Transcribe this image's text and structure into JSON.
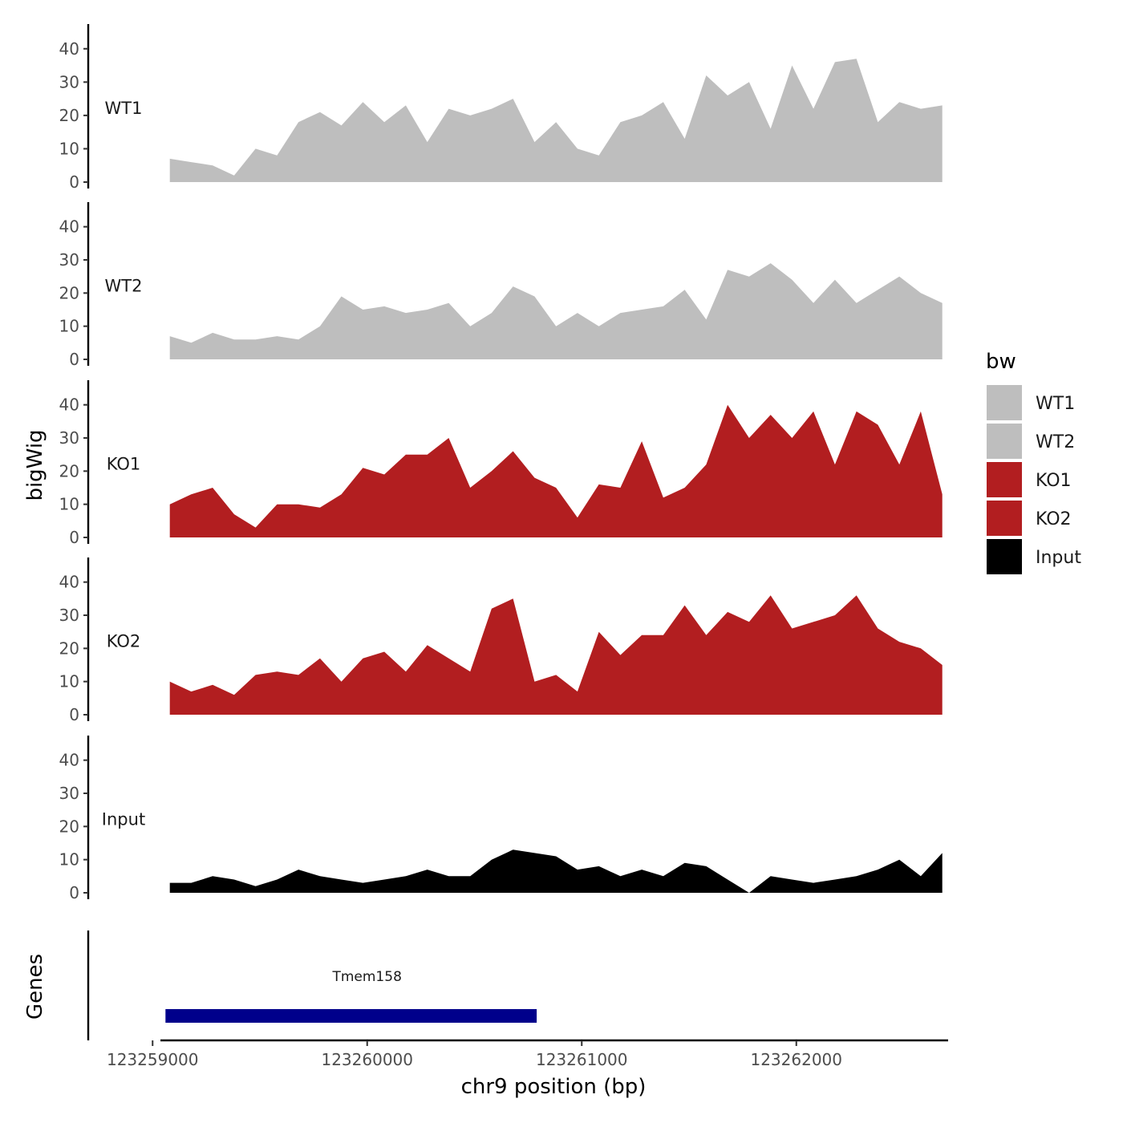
{
  "chart_data": {
    "type": "area",
    "chromosome": "chr9",
    "xlabel": "chr9 position (bp)",
    "ylabel": "bigWig",
    "gene_panel_label": "Genes",
    "xlim": [
      123258700,
      123262700
    ],
    "x_ticks": [
      123259000,
      123260000,
      123261000,
      123262000
    ],
    "x_tick_labels": [
      "123259000",
      "123260000",
      "123261000",
      "123262000"
    ],
    "ylim": [
      0,
      45
    ],
    "y_ticks": [
      0,
      10,
      20,
      30,
      40
    ],
    "y_tick_labels": [
      "0",
      "10",
      "20",
      "30",
      "40"
    ],
    "legend": {
      "title": "bw",
      "position": "right",
      "entries": [
        {
          "label": "WT1",
          "color": "#BEBEBE"
        },
        {
          "label": "WT2",
          "color": "#BEBEBE"
        },
        {
          "label": "KO1",
          "color": "#B21E20"
        },
        {
          "label": "KO2",
          "color": "#B21E20"
        },
        {
          "label": "Input",
          "color": "#000000"
        }
      ]
    },
    "x_positions": [
      123259080,
      123259180,
      123259280,
      123259380,
      123259480,
      123259580,
      123259680,
      123259780,
      123259880,
      123259980,
      123260080,
      123260180,
      123260280,
      123260380,
      123260480,
      123260580,
      123260680,
      123260780,
      123260880,
      123260980,
      123261080,
      123261180,
      123261280,
      123261380,
      123261480,
      123261580,
      123261680,
      123261780,
      123261880,
      123261980,
      123262080,
      123262180,
      123262280,
      123262380,
      123262480,
      123262580,
      123262680
    ],
    "series": [
      {
        "name": "WT1",
        "color": "#BEBEBE",
        "values": [
          7,
          6,
          5,
          2,
          10,
          8,
          18,
          21,
          17,
          24,
          18,
          23,
          12,
          22,
          20,
          22,
          25,
          12,
          18,
          10,
          8,
          18,
          20,
          24,
          13,
          32,
          26,
          30,
          16,
          35,
          22,
          36,
          37,
          18,
          24,
          22,
          23
        ]
      },
      {
        "name": "WT2",
        "color": "#BEBEBE",
        "values": [
          7,
          5,
          8,
          6,
          6,
          7,
          6,
          10,
          19,
          15,
          16,
          14,
          15,
          17,
          10,
          14,
          22,
          19,
          10,
          14,
          10,
          14,
          15,
          16,
          21,
          12,
          27,
          25,
          29,
          24,
          17,
          24,
          17,
          21,
          25,
          20,
          17
        ]
      },
      {
        "name": "KO1",
        "color": "#B21E20",
        "values": [
          10,
          13,
          15,
          7,
          3,
          10,
          10,
          9,
          13,
          21,
          19,
          25,
          25,
          30,
          15,
          20,
          26,
          18,
          15,
          6,
          16,
          15,
          29,
          12,
          15,
          22,
          40,
          30,
          37,
          30,
          38,
          22,
          38,
          34,
          22,
          38,
          13
        ]
      },
      {
        "name": "KO2",
        "color": "#B21E20",
        "values": [
          10,
          7,
          9,
          6,
          12,
          13,
          12,
          17,
          10,
          17,
          19,
          13,
          21,
          17,
          13,
          32,
          35,
          10,
          12,
          7,
          25,
          18,
          24,
          24,
          33,
          24,
          31,
          28,
          36,
          26,
          28,
          30,
          36,
          26,
          22,
          20,
          15
        ]
      },
      {
        "name": "Input",
        "color": "#000000",
        "values": [
          3,
          3,
          5,
          4,
          2,
          4,
          7,
          5,
          4,
          3,
          4,
          5,
          7,
          5,
          5,
          10,
          13,
          12,
          11,
          7,
          8,
          5,
          7,
          5,
          9,
          8,
          4,
          0,
          5,
          4,
          3,
          4,
          5,
          7,
          10,
          5,
          12
        ]
      }
    ],
    "genes": [
      {
        "name": "Tmem158",
        "start": 123259060,
        "end": 123260790,
        "color": "#00008B"
      }
    ]
  }
}
